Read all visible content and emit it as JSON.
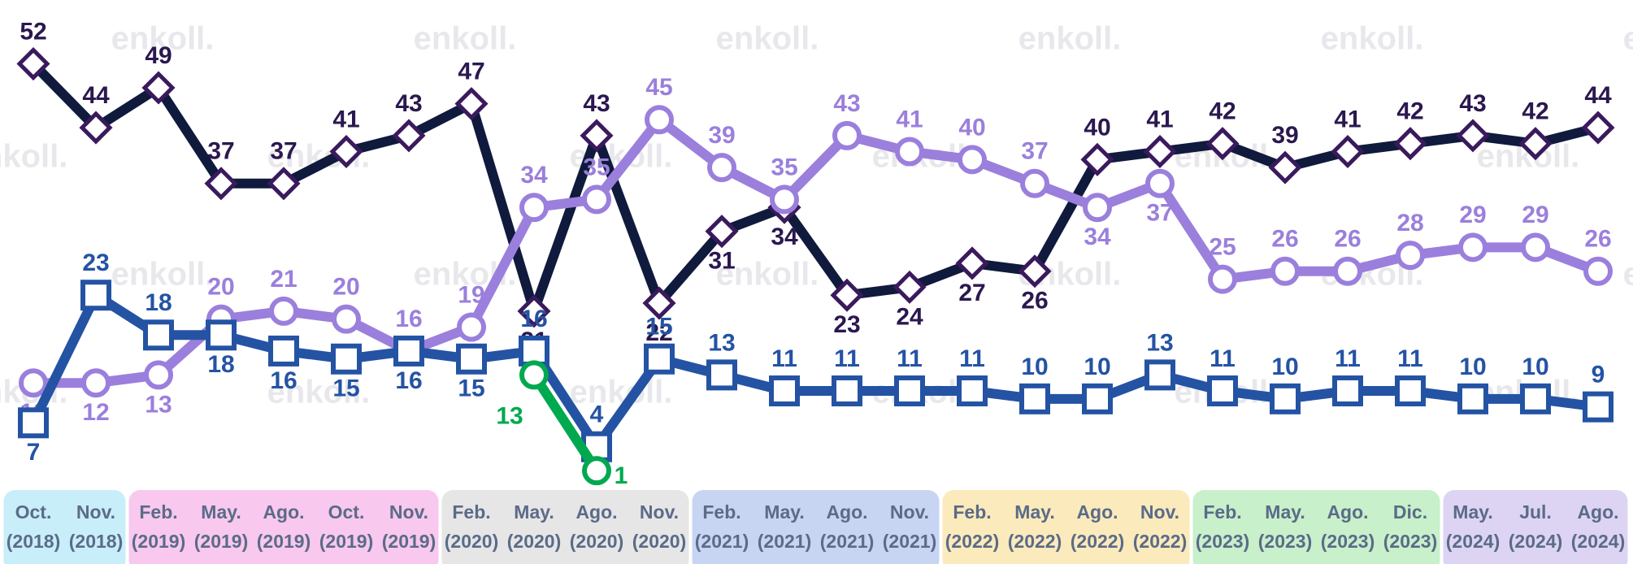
{
  "chart_data": {
    "type": "line",
    "watermark": "enkoll.",
    "categories": [
      "Oct. (2018)",
      "Nov. (2018)",
      "Feb. (2019)",
      "May. (2019)",
      "Ago. (2019)",
      "Oct. (2019)",
      "Nov. (2019)",
      "Feb. (2020)",
      "May. (2020)",
      "Ago. (2020)",
      "Nov. (2020)",
      "Feb. (2021)",
      "May. (2021)",
      "Ago. (2021)",
      "Nov. (2021)",
      "Feb. (2022)",
      "May. (2022)",
      "Ago. (2022)",
      "Nov. (2022)",
      "Feb. (2023)",
      "May. (2023)",
      "Ago. (2023)",
      "Dic. (2023)",
      "May. (2024)",
      "Jul. (2024)",
      "Ago. (2024)"
    ],
    "category_colors": [
      "#c8eefa",
      "#c8eefa",
      "#f8c8ee",
      "#f8c8ee",
      "#f8c8ee",
      "#f8c8ee",
      "#f8c8ee",
      "#e6e6e6",
      "#e6e6e6",
      "#e6e6e6",
      "#e6e6e6",
      "#c7d5f2",
      "#c7d5f2",
      "#c7d5f2",
      "#c7d5f2",
      "#fbeabb",
      "#fbeabb",
      "#fbeabb",
      "#fbeabb",
      "#c8f0cb",
      "#c8f0cb",
      "#c8f0cb",
      "#c8f0cb",
      "#ddd4f4",
      "#ddd4f4",
      "#ddd4f4"
    ],
    "ylim": [
      0,
      60
    ],
    "series": [
      {
        "color": "#0f1a3d",
        "marker": "diamond",
        "label_color": "#2b1850",
        "values": [
          52,
          44,
          49,
          37,
          37,
          41,
          43,
          47,
          21,
          43,
          22,
          31,
          34,
          23,
          24,
          27,
          26,
          40,
          41,
          42,
          39,
          41,
          42,
          43,
          42,
          44
        ]
      },
      {
        "color": "#9b7fdc",
        "marker": "circle",
        "label_color": "#9b7fdc",
        "values": [
          12,
          12,
          13,
          20,
          21,
          20,
          16,
          19,
          34,
          35,
          45,
          39,
          35,
          43,
          41,
          40,
          37,
          34,
          37,
          25,
          26,
          26,
          28,
          29,
          29,
          26
        ]
      },
      {
        "color": "#2453a4",
        "marker": "square",
        "label_color": "#2453a4",
        "values": [
          7,
          23,
          18,
          18,
          16,
          15,
          16,
          15,
          16,
          4,
          15,
          13,
          11,
          11,
          11,
          11,
          10,
          10,
          13,
          11,
          10,
          11,
          11,
          10,
          10,
          9
        ]
      },
      {
        "color": "#00a94f",
        "marker": "circle",
        "label_color": "#00a94f",
        "values": [
          null,
          null,
          null,
          null,
          null,
          null,
          null,
          null,
          13,
          1,
          null,
          null,
          null,
          null,
          null,
          null,
          null,
          null,
          null,
          null,
          null,
          null,
          null,
          null,
          null,
          null
        ]
      }
    ]
  }
}
